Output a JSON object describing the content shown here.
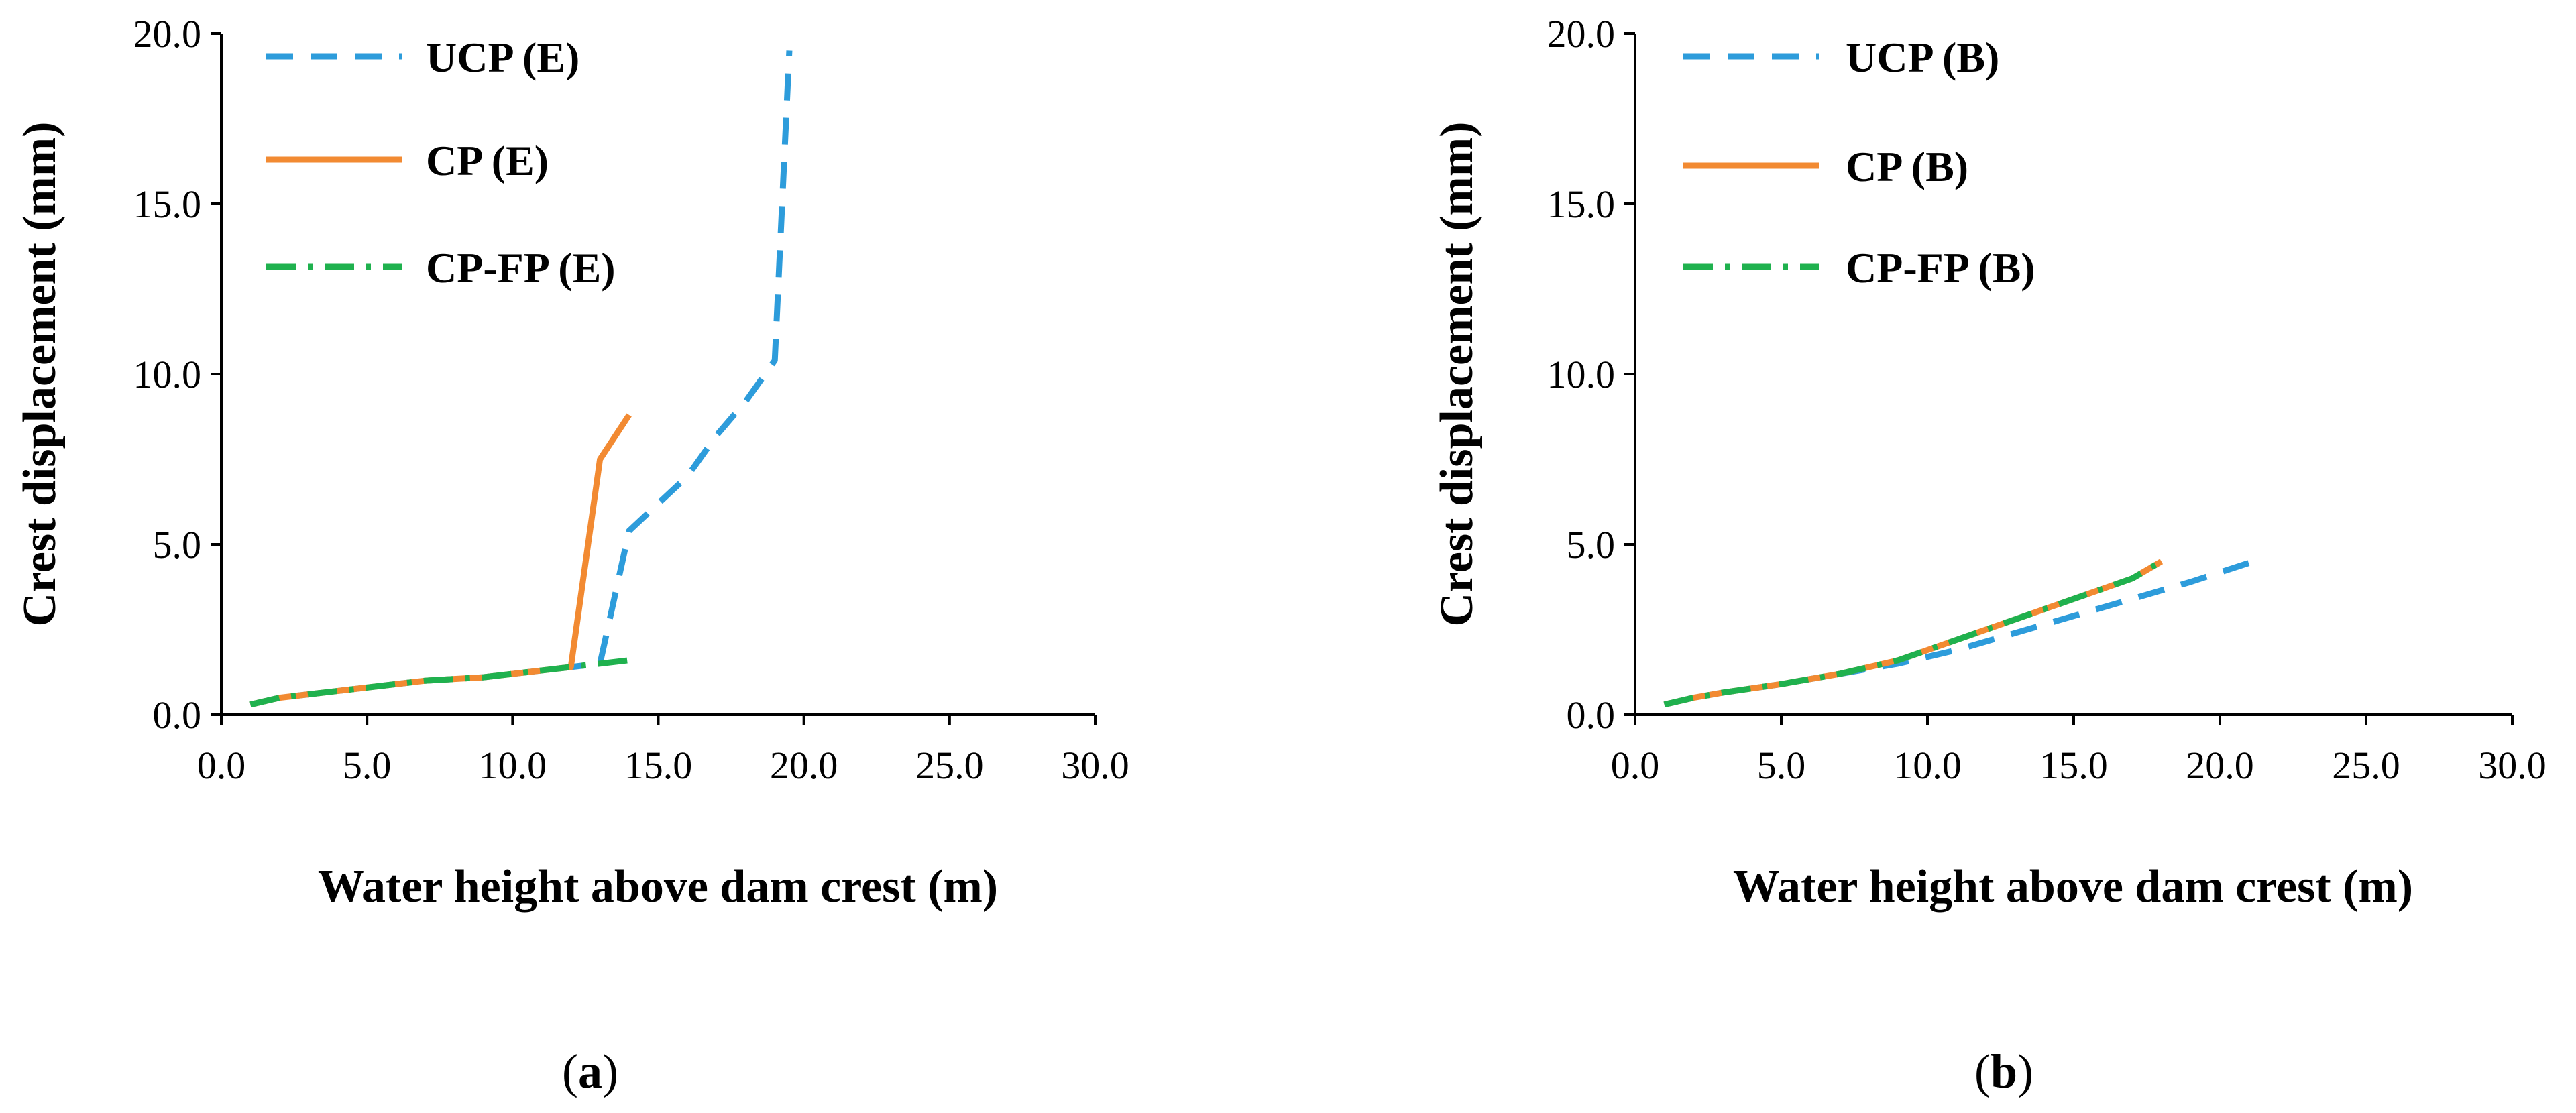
{
  "chart_data": [
    {
      "type": "line",
      "panel": "a",
      "caption": "(a)",
      "caption_open": "(",
      "caption_letter": "a",
      "caption_close": ")",
      "xlabel": "Water height above dam crest (m)",
      "ylabel": "Crest displacement (mm)",
      "xlim": [
        0,
        30
      ],
      "ylim": [
        0,
        20
      ],
      "x_ticks": [
        "0.0",
        "5.0",
        "10.0",
        "15.0",
        "20.0",
        "25.0",
        "30.0"
      ],
      "y_ticks": [
        "0.0",
        "5.0",
        "10.0",
        "15.0",
        "20.0"
      ],
      "legend_position": "top-left",
      "series": [
        {
          "name": "UCP (E)",
          "color": "#2d9cdb",
          "style": "dashed",
          "x": [
            1,
            2,
            3,
            4,
            5,
            6,
            7,
            8,
            9,
            10,
            11,
            12,
            13,
            14,
            15,
            16,
            17,
            18,
            19,
            19.5
          ],
          "y": [
            0.3,
            0.5,
            0.6,
            0.7,
            0.8,
            0.9,
            1.0,
            1.05,
            1.1,
            1.2,
            1.3,
            1.4,
            1.5,
            5.4,
            6.2,
            7.0,
            8.2,
            9.2,
            10.4,
            19.5
          ]
        },
        {
          "name": "CP (E)",
          "color": "#f28a32",
          "style": "solid",
          "x": [
            1,
            2,
            3,
            4,
            5,
            6,
            7,
            8,
            9,
            10,
            11,
            12,
            13,
            14
          ],
          "y": [
            0.3,
            0.5,
            0.6,
            0.7,
            0.8,
            0.9,
            1.0,
            1.05,
            1.1,
            1.2,
            1.3,
            1.4,
            7.5,
            8.8
          ]
        },
        {
          "name": "CP-FP (E)",
          "color": "#1fb14e",
          "style": "dashdot",
          "x": [
            1,
            2,
            3,
            4,
            5,
            6,
            7,
            8,
            9,
            10,
            11,
            12,
            13,
            14
          ],
          "y": [
            0.3,
            0.5,
            0.6,
            0.7,
            0.8,
            0.9,
            1.0,
            1.05,
            1.1,
            1.2,
            1.3,
            1.4,
            1.5,
            1.6
          ]
        }
      ]
    },
    {
      "type": "line",
      "panel": "b",
      "caption": "(b)",
      "caption_open": "(",
      "caption_letter": "b",
      "caption_close": ")",
      "xlabel": "Water height above dam crest (m)",
      "ylabel": "Crest displacement (mm)",
      "xlim": [
        0,
        30
      ],
      "ylim": [
        0,
        20
      ],
      "x_ticks": [
        "0.0",
        "5.0",
        "10.0",
        "15.0",
        "20.0",
        "25.0",
        "30.0"
      ],
      "y_ticks": [
        "0.0",
        "5.0",
        "10.0",
        "15.0",
        "20.0"
      ],
      "legend_position": "top-left",
      "series": [
        {
          "name": "UCP (B)",
          "color": "#2d9cdb",
          "style": "dashed",
          "x": [
            1,
            2,
            3,
            5,
            7,
            9,
            11,
            13,
            15,
            17,
            19,
            21.5
          ],
          "y": [
            0.3,
            0.5,
            0.65,
            0.9,
            1.2,
            1.5,
            1.9,
            2.4,
            2.9,
            3.4,
            3.9,
            4.6
          ]
        },
        {
          "name": "CP (B)",
          "color": "#f28a32",
          "style": "solid",
          "x": [
            1,
            2,
            3,
            5,
            7,
            9,
            11,
            13,
            15,
            17,
            18
          ],
          "y": [
            0.3,
            0.5,
            0.65,
            0.9,
            1.2,
            1.6,
            2.2,
            2.8,
            3.4,
            4.0,
            4.5
          ]
        },
        {
          "name": "CP-FP (B)",
          "color": "#1fb14e",
          "style": "dashdot",
          "x": [
            1,
            2,
            3,
            5,
            7,
            9,
            11,
            13,
            15,
            17,
            18
          ],
          "y": [
            0.3,
            0.5,
            0.65,
            0.9,
            1.2,
            1.6,
            2.2,
            2.8,
            3.4,
            4.0,
            4.5
          ]
        }
      ]
    }
  ]
}
